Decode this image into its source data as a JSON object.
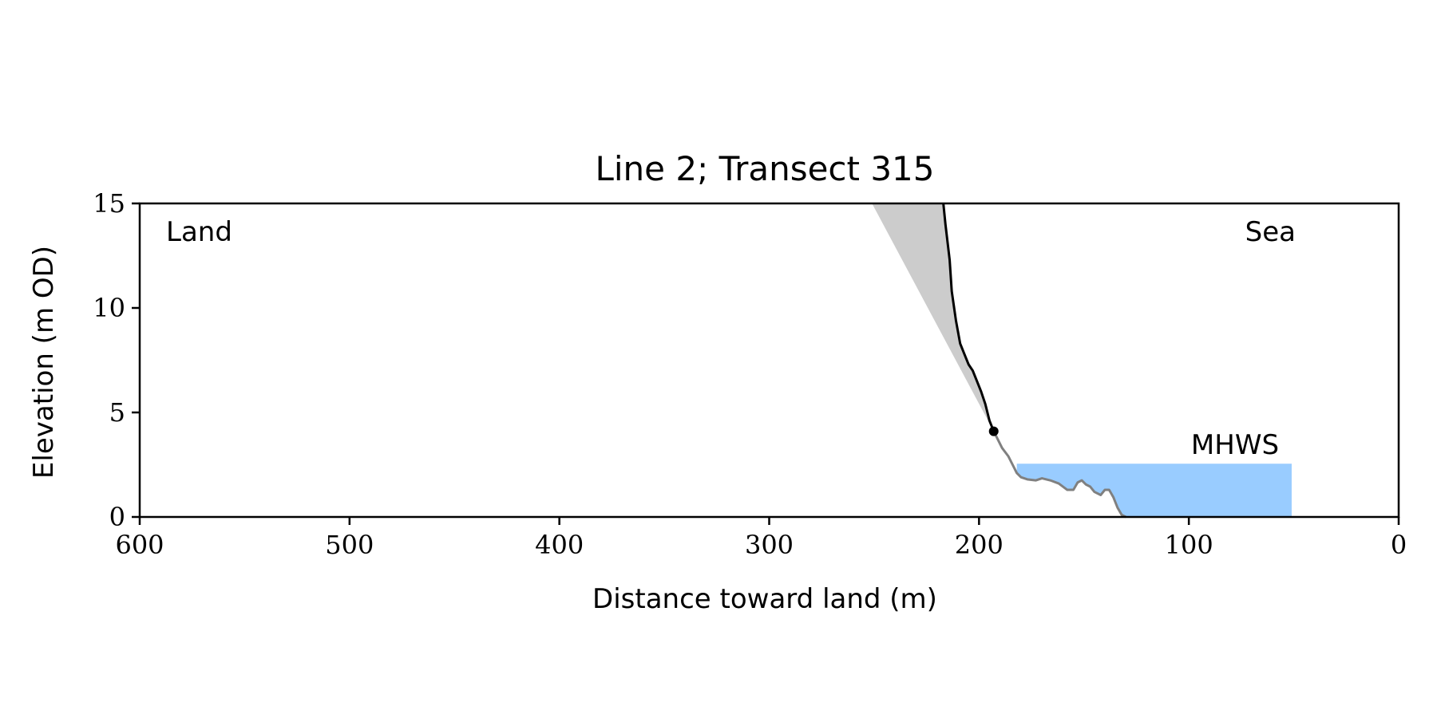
{
  "chart_data": {
    "type": "line",
    "title": "Line 2; Transect 315",
    "xlabel": "Distance toward land (m)",
    "ylabel": "Elevation (m OD)",
    "xlim": [
      600,
      0
    ],
    "ylim": [
      0,
      15
    ],
    "x_reversed": true,
    "xticks": [
      600,
      500,
      400,
      300,
      200,
      100,
      0
    ],
    "yticks": [
      0,
      5,
      10,
      15
    ],
    "grid": false,
    "annotations": {
      "left": "Land",
      "right": "Sea",
      "mhws_label": "MHWS"
    },
    "colors": {
      "cliff_profile": "#000000",
      "beach_profile": "#808080",
      "shaded_region": "#cccccc",
      "mhws_fill": "#99ccff",
      "mhws_text": "#6699cc",
      "marker": "#000000"
    },
    "series": [
      {
        "role": "cliff",
        "x": [
          217,
          216,
          214,
          213,
          211,
          209,
          207,
          205,
          203,
          201,
          199,
          197,
          195,
          193
        ],
        "y": [
          15,
          14,
          12.3,
          10.8,
          9.4,
          8.3,
          7.8,
          7.3,
          7.0,
          6.5,
          6.0,
          5.4,
          4.6,
          4.1
        ]
      },
      {
        "role": "beach",
        "x": [
          193,
          191,
          189,
          186,
          184,
          182,
          180,
          177,
          173,
          170,
          166,
          162,
          158,
          155,
          153,
          151,
          149,
          147,
          145,
          142,
          140,
          138,
          136,
          134,
          132,
          130
        ],
        "y": [
          4.1,
          3.7,
          3.3,
          2.9,
          2.5,
          2.1,
          1.9,
          1.8,
          1.75,
          1.85,
          1.75,
          1.6,
          1.3,
          1.3,
          1.65,
          1.75,
          1.55,
          1.45,
          1.2,
          1.05,
          1.3,
          1.3,
          0.95,
          0.45,
          0.1,
          0
        ]
      }
    ],
    "marker_point": {
      "x": 193,
      "y": 4.1
    },
    "shaded_region": {
      "x": [
        251,
        217,
        216,
        214,
        213,
        211,
        209,
        207,
        205,
        203,
        201,
        199,
        197,
        195,
        193
      ],
      "y": [
        15,
        15,
        14,
        12.3,
        10.8,
        9.4,
        8.3,
        7.8,
        7.3,
        7.0,
        6.5,
        6.0,
        5.4,
        4.6,
        4.1
      ]
    },
    "mhws_region": {
      "level": 2.55,
      "x_start": 51,
      "x_label": 78,
      "profile_x": [
        182,
        180,
        177,
        173,
        170,
        166,
        162,
        158,
        155,
        153,
        151,
        149,
        147,
        145,
        142,
        140,
        138,
        136,
        134,
        132,
        130
      ]
    }
  }
}
